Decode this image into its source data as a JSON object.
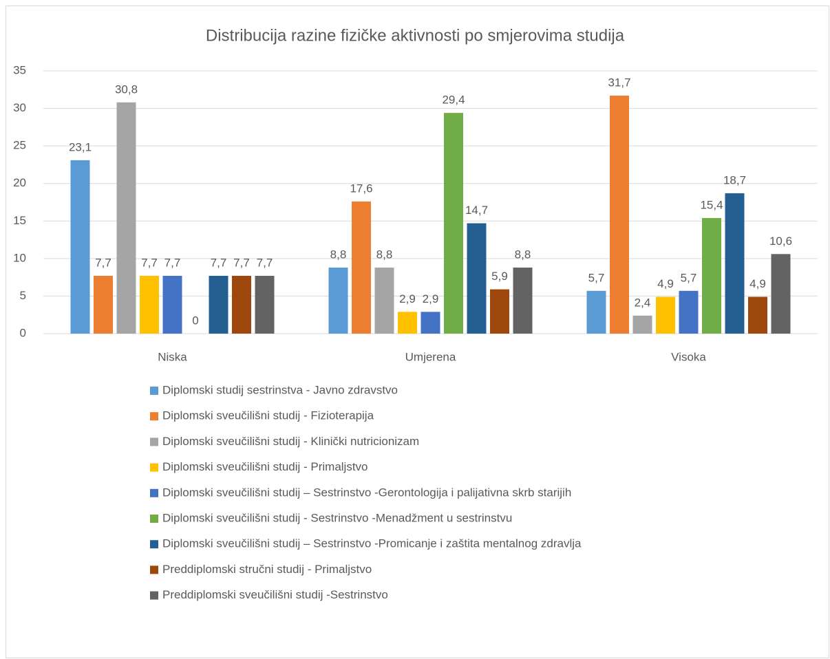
{
  "chart_data": {
    "type": "bar",
    "title": "Distribucija razine fizičke aktivnosti po smjerovima studija",
    "categories": [
      "Niska",
      "Umjerena",
      "Visoka"
    ],
    "ylim": [
      0,
      35
    ],
    "yticks": [
      0,
      5,
      10,
      15,
      20,
      25,
      30,
      35
    ],
    "grid": true,
    "legend": "bottom",
    "series": [
      {
        "name": "Diplomski studij sestrinstva - Javno zdravstvo",
        "color": "#5b9bd5",
        "values": [
          23.1,
          8.8,
          5.7
        ],
        "value_labels": [
          "23,1",
          "8,8",
          "5,7"
        ]
      },
      {
        "name": "Diplomski sveučilišni studij - Fizioterapija",
        "color": "#ed7d31",
        "values": [
          7.7,
          17.6,
          31.7
        ],
        "value_labels": [
          "7,7",
          "17,6",
          "31,7"
        ]
      },
      {
        "name": "Diplomski sveučilišni studij - Klinički nutricionizam",
        "color": "#a5a5a5",
        "values": [
          30.8,
          8.8,
          2.4
        ],
        "value_labels": [
          "30,8",
          "8,8",
          "2,4"
        ]
      },
      {
        "name": "Diplomski sveučilišni studij - Primaljstvo",
        "color": "#ffc000",
        "values": [
          7.7,
          2.9,
          4.9
        ],
        "value_labels": [
          "7,7",
          "2,9",
          "4,9"
        ]
      },
      {
        "name": "Diplomski sveučilišni studij – Sestrinstvo -Gerontologija i palijativna skrb starijih",
        "color": "#4472c4",
        "values": [
          7.7,
          2.9,
          5.7
        ],
        "value_labels": [
          "7,7",
          "2,9",
          "5,7"
        ]
      },
      {
        "name": "Diplomski sveučilišni studij - Sestrinstvo -Menadžment u sestrinstvu",
        "color": "#70ad47",
        "values": [
          0,
          29.4,
          15.4
        ],
        "value_labels": [
          "0",
          "29,4",
          "15,4"
        ]
      },
      {
        "name": "Diplomski sveučilišni studij – Sestrinstvo -Promicanje i zaštita mentalnog zdravlja",
        "color": "#255e91",
        "values": [
          7.7,
          14.7,
          18.7
        ],
        "value_labels": [
          "7,7",
          "14,7",
          "18,7"
        ]
      },
      {
        "name": "Preddiplomski stručni studij - Primaljstvo",
        "color": "#9e480e",
        "values": [
          7.7,
          5.9,
          4.9
        ],
        "value_labels": [
          "7,7",
          "5,9",
          "4,9"
        ]
      },
      {
        "name": "Preddiplomski sveučilišni studij -Sestrinstvo",
        "color": "#636363",
        "values": [
          7.7,
          8.8,
          10.6
        ],
        "value_labels": [
          "7,7",
          "8,8",
          "10,6"
        ]
      }
    ]
  }
}
